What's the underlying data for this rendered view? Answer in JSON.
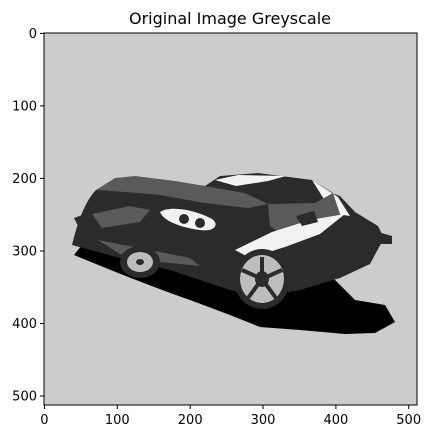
{
  "figure": {
    "title": "Original Image Greyscale",
    "x_ticks": [
      "0",
      "100",
      "200",
      "300",
      "400",
      "500"
    ],
    "y_ticks": [
      "0",
      "100",
      "200",
      "300",
      "400",
      "500"
    ],
    "image": {
      "subject": "car",
      "background_color": "#cccccc",
      "colors": {
        "body_dark": "#2b2b2b",
        "body_mid": "#5a5a5a",
        "highlight": "#f2f2f2",
        "shadow": "#000000",
        "wheel_silver": "#bdbdbd"
      }
    }
  }
}
